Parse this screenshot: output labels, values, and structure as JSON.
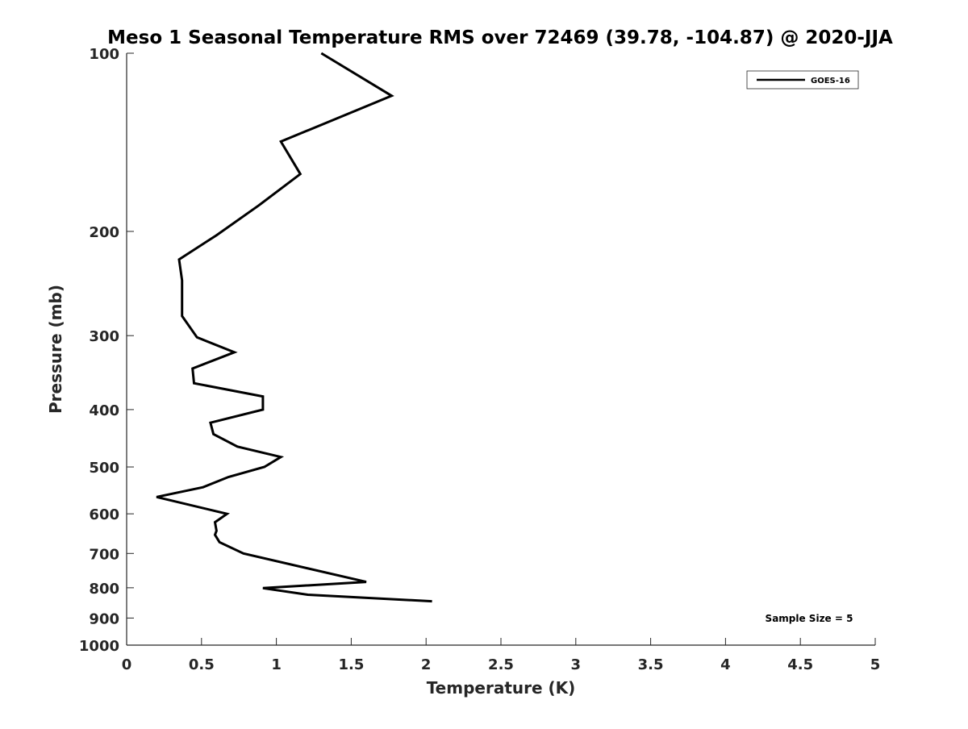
{
  "chart_data": {
    "type": "line",
    "title": "Meso 1 Seasonal Temperature RMS over 72469 (39.78, -104.87) @ 2020-JJA",
    "xlabel": "Temperature (K)",
    "ylabel": "Pressure (mb)",
    "xlim": [
      0,
      5
    ],
    "ylim": [
      100,
      1000
    ],
    "yscale": "log",
    "y_reversed": true,
    "grid": false,
    "xticks": [
      0,
      0.5,
      1,
      1.5,
      2,
      2.5,
      3,
      3.5,
      4,
      4.5,
      5
    ],
    "xtick_labels": [
      "0",
      "0.5",
      "1",
      "1.5",
      "2",
      "2.5",
      "3",
      "3.5",
      "4",
      "4.5",
      "5"
    ],
    "yticks": [
      100,
      200,
      300,
      400,
      500,
      600,
      700,
      800,
      900,
      1000
    ],
    "ytick_labels": [
      "100",
      "200",
      "300",
      "400",
      "500",
      "600",
      "700",
      "800",
      "900",
      "1000"
    ],
    "legend_position": "top-right",
    "annotation": "Sample Size = 5",
    "series": [
      {
        "name": "GOES-16",
        "color": "#000000",
        "points": [
          {
            "x": 1.3,
            "y": 100
          },
          {
            "x": 1.77,
            "y": 118
          },
          {
            "x": 1.03,
            "y": 141
          },
          {
            "x": 1.16,
            "y": 160
          },
          {
            "x": 0.88,
            "y": 181
          },
          {
            "x": 0.6,
            "y": 203
          },
          {
            "x": 0.35,
            "y": 223
          },
          {
            "x": 0.37,
            "y": 242
          },
          {
            "x": 0.37,
            "y": 256
          },
          {
            "x": 0.37,
            "y": 278
          },
          {
            "x": 0.47,
            "y": 302
          },
          {
            "x": 0.72,
            "y": 320
          },
          {
            "x": 0.44,
            "y": 341
          },
          {
            "x": 0.45,
            "y": 361
          },
          {
            "x": 0.91,
            "y": 380
          },
          {
            "x": 0.91,
            "y": 400
          },
          {
            "x": 0.56,
            "y": 421
          },
          {
            "x": 0.58,
            "y": 440
          },
          {
            "x": 0.74,
            "y": 462
          },
          {
            "x": 1.03,
            "y": 481
          },
          {
            "x": 0.92,
            "y": 500
          },
          {
            "x": 0.68,
            "y": 520
          },
          {
            "x": 0.51,
            "y": 541
          },
          {
            "x": 0.2,
            "y": 562
          },
          {
            "x": 0.67,
            "y": 600
          },
          {
            "x": 0.59,
            "y": 620
          },
          {
            "x": 0.6,
            "y": 641
          },
          {
            "x": 0.59,
            "y": 651
          },
          {
            "x": 0.62,
            "y": 670
          },
          {
            "x": 0.78,
            "y": 700
          },
          {
            "x": 1.6,
            "y": 782
          },
          {
            "x": 0.91,
            "y": 801
          },
          {
            "x": 1.21,
            "y": 822
          },
          {
            "x": 2.04,
            "y": 843
          }
        ]
      }
    ]
  }
}
